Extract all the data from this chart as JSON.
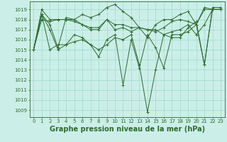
{
  "background_color": "#cceee8",
  "grid_color": "#99ddcc",
  "line_color": "#2d6a2d",
  "xlabel": "Graphe pression niveau de la mer (hPa)",
  "xlabel_fontsize": 7.0,
  "ylabel_ticks": [
    1009,
    1010,
    1011,
    1012,
    1013,
    1014,
    1015,
    1016,
    1017,
    1018,
    1019
  ],
  "xlim": [
    -0.5,
    23.5
  ],
  "ylim": [
    1008.3,
    1019.8
  ],
  "xticks": [
    0,
    1,
    2,
    3,
    4,
    5,
    6,
    7,
    8,
    9,
    10,
    11,
    12,
    13,
    14,
    15,
    16,
    17,
    18,
    19,
    20,
    21,
    22,
    23
  ],
  "tick_fontsize": 5.0,
  "series": [
    [
      1015.0,
      1019.0,
      1018.0,
      1018.0,
      1018.0,
      1018.0,
      1018.5,
      1018.2,
      1018.5,
      1019.2,
      1019.5,
      1018.8,
      1018.2,
      1017.2,
      1016.2,
      1017.5,
      1018.0,
      1018.0,
      1018.5,
      1018.8,
      1017.5,
      1019.2,
      1019.0,
      1019.0
    ],
    [
      1015.0,
      1018.0,
      1017.8,
      1018.0,
      1018.0,
      1017.8,
      1017.5,
      1017.2,
      1017.2,
      1018.0,
      1017.5,
      1017.5,
      1017.2,
      1017.2,
      1017.0,
      1016.8,
      1017.2,
      1017.8,
      1018.0,
      1017.8,
      1017.5,
      1019.0,
      1019.0,
      1019.0
    ],
    [
      1015.0,
      1018.5,
      1017.5,
      1015.2,
      1018.2,
      1018.0,
      1017.5,
      1017.0,
      1017.0,
      1018.0,
      1017.0,
      1017.2,
      1016.8,
      1017.2,
      1017.0,
      1017.0,
      1016.5,
      1016.8,
      1017.0,
      1017.5,
      1016.5,
      1017.5,
      1019.0,
      1019.0
    ],
    [
      1015.0,
      1018.5,
      1017.0,
      1015.0,
      1015.5,
      1016.5,
      1016.2,
      1015.5,
      1014.3,
      1016.0,
      1016.5,
      1011.5,
      1016.0,
      1013.2,
      1016.5,
      1015.2,
      1013.2,
      1016.5,
      1016.5,
      1016.8,
      1017.5,
      1013.5,
      1019.0,
      1019.0
    ],
    [
      1015.0,
      1018.5,
      1015.0,
      1015.5,
      1015.5,
      1015.8,
      1016.0,
      1015.5,
      1015.0,
      1015.5,
      1016.2,
      1016.0,
      1016.5,
      1013.5,
      1008.8,
      1013.0,
      1016.5,
      1016.2,
      1016.2,
      1017.2,
      1017.8,
      1013.5,
      1019.2,
      1019.2
    ]
  ]
}
